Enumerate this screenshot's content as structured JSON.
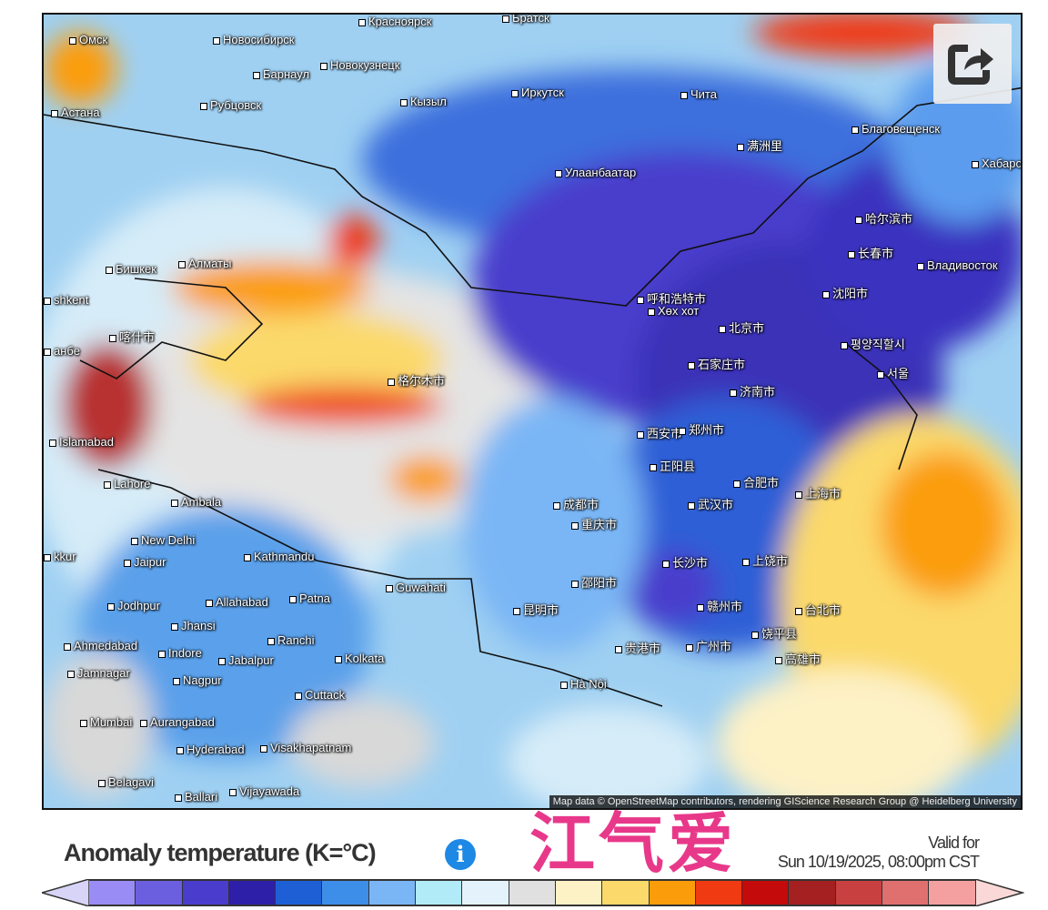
{
  "map": {
    "cities": [
      "Омск",
      "Новосибирск",
      "Барнаул",
      "Новокузнецк",
      "Красноярск",
      "Братск",
      "Астана",
      "Рубцовск",
      "Кызыл",
      "Иркутск",
      "Чита",
      "满洲里",
      "Благовещенск",
      "Хабаро",
      "Улаанбаатар",
      "哈尔滨市",
      "长春市",
      "Владивосток",
      "Бишкек",
      "Алматы",
      "shkent",
      "呼和浩特市",
      "Хөх хот",
      "沈阳市",
      "北京市",
      "평양직할시",
      "анбе",
      "喀什市",
      "石家庄市",
      "서울",
      "济南市",
      "格尔木市",
      "西安市",
      "郑州市",
      "Islamabad",
      "正阳县",
      "合肥市",
      "上海市",
      "Lahore",
      "Ambala",
      "成都市",
      "武汉市",
      "重庆市",
      "New Delhi",
      "Kathmandu",
      "长沙市",
      "上饶市",
      "Jaipur",
      "Guwahati",
      "邵阳市",
      "Jodhpur",
      "Allahabad",
      "Patna",
      "昆明市",
      "赣州市",
      "Jhansi",
      "台北市",
      "Ahmedabad",
      "Indore",
      "Ranchi",
      "Jabalpur",
      "贵港市",
      "广州市",
      "饶平县",
      "高雄市",
      "Jamnagar",
      "Kolkata",
      "Nagpur",
      "Hà Nội",
      "Cuttack",
      "Mumbai",
      "Aurangabad",
      "Hyderabad",
      "Visakhapatnam",
      "Belagavi",
      "Ballari",
      "Vijayawada",
      "kkur"
    ],
    "attribution": "Map data © OpenStreetMap contributors, rendering GIScience Research Group @ Heidelberg University",
    "share_icon": "share-icon"
  },
  "header": {
    "title": "Anomaly temperature (K=°C)",
    "info_icon": "i",
    "watermark": "江气爱",
    "valid_label": "Valid for",
    "valid_time": "Sun 10/19/2025, 08:00pm CST"
  },
  "legend": {
    "low_arrow": "#d8d4f8",
    "high_arrow": "#fbd8d8",
    "colors": [
      "#9a8cf5",
      "#6b5fe0",
      "#4a3ccc",
      "#2e1fa8",
      "#1e5fd6",
      "#3d8ee8",
      "#7ab6f5",
      "#b2ebf8",
      "#e4f3fb",
      "#e0e0e0",
      "#fdf1c6",
      "#fbd96a",
      "#fb9d0a",
      "#ef3a12",
      "#c40a0a",
      "#a52020",
      "#c84040",
      "#e07070",
      "#f4a0a0"
    ]
  }
}
